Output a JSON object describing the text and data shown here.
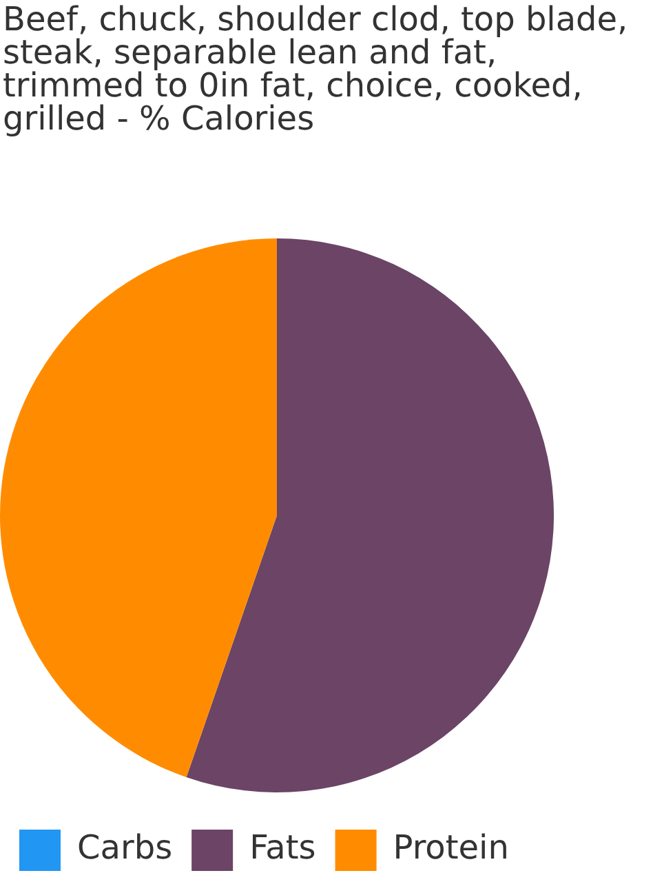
{
  "chart_data": {
    "type": "pie",
    "title": "Beef, chuck, shoulder clod, top blade, steak, separable lean and fat, trimmed to 0in fat, choice, cooked, grilled - % Calories",
    "categories": [
      "Carbs",
      "Fats",
      "Protein"
    ],
    "values": [
      0,
      55.3,
      44.7
    ],
    "colors": [
      "#2196f3",
      "#6b4466",
      "#ff8c00"
    ],
    "legend": "bottom"
  }
}
